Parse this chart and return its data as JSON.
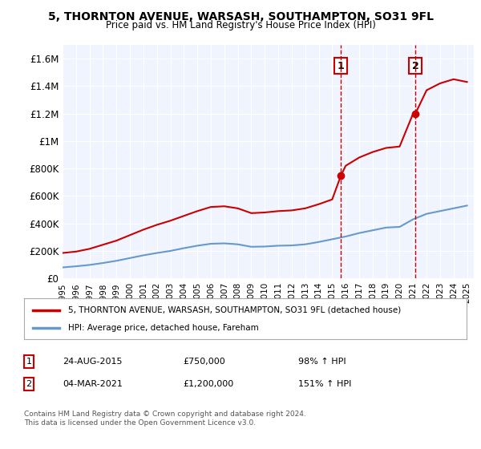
{
  "title": "5, THORNTON AVENUE, WARSASH, SOUTHAMPTON, SO31 9FL",
  "subtitle": "Price paid vs. HM Land Registry's House Price Index (HPI)",
  "background_color": "#ffffff",
  "plot_bg_color": "#f0f4ff",
  "ylim": [
    0,
    1700000
  ],
  "yticks": [
    0,
    200000,
    400000,
    600000,
    800000,
    1000000,
    1200000,
    1400000,
    1600000
  ],
  "ytick_labels": [
    "£0",
    "£200K",
    "£400K",
    "£600K",
    "£800K",
    "£1M",
    "£1.2M",
    "£1.4M",
    "£1.6M"
  ],
  "xlim_start": 1995,
  "xlim_end": 2025.5,
  "xticks": [
    1995,
    1996,
    1997,
    1998,
    1999,
    2000,
    2001,
    2002,
    2003,
    2004,
    2005,
    2006,
    2007,
    2008,
    2009,
    2010,
    2011,
    2012,
    2013,
    2014,
    2015,
    2016,
    2017,
    2018,
    2019,
    2020,
    2021,
    2022,
    2023,
    2024,
    2025
  ],
  "sale1_x": 2015.65,
  "sale1_y": 750000,
  "sale1_label": "1",
  "sale2_x": 2021.17,
  "sale2_y": 1200000,
  "sale2_label": "2",
  "sale_color": "#cc0000",
  "hpi_color": "#6699cc",
  "legend_items": [
    {
      "label": "5, THORNTON AVENUE, WARSASH, SOUTHAMPTON, SO31 9FL (detached house)",
      "color": "#cc0000"
    },
    {
      "label": "HPI: Average price, detached house, Fareham",
      "color": "#6699cc"
    }
  ],
  "table_rows": [
    {
      "num": "1",
      "date": "24-AUG-2015",
      "price": "£750,000",
      "hpi": "98% ↑ HPI"
    },
    {
      "num": "2",
      "date": "04-MAR-2021",
      "price": "£1,200,000",
      "hpi": "151% ↑ HPI"
    }
  ],
  "footer": "Contains HM Land Registry data © Crown copyright and database right 2024.\nThis data is licensed under the Open Government Licence v3.0.",
  "hpi_x": [
    1995,
    1996,
    1997,
    1998,
    1999,
    2000,
    2001,
    2002,
    2003,
    2004,
    2005,
    2006,
    2007,
    2008,
    2009,
    2010,
    2011,
    2012,
    2013,
    2014,
    2015,
    2016,
    2017,
    2018,
    2019,
    2020,
    2021,
    2022,
    2023,
    2024,
    2025
  ],
  "hpi_y": [
    80000,
    88000,
    98000,
    112000,
    128000,
    148000,
    168000,
    185000,
    200000,
    220000,
    238000,
    252000,
    255000,
    248000,
    230000,
    232000,
    238000,
    240000,
    248000,
    265000,
    285000,
    305000,
    330000,
    350000,
    370000,
    375000,
    430000,
    470000,
    490000,
    510000,
    530000
  ],
  "red_x": [
    1995,
    1996,
    1997,
    1998,
    1999,
    2000,
    2001,
    2002,
    2003,
    2004,
    2005,
    2006,
    2007,
    2008,
    2009,
    2010,
    2011,
    2012,
    2013,
    2014,
    2015,
    2015.65,
    2016,
    2017,
    2018,
    2019,
    2020,
    2021,
    2021.17,
    2022,
    2023,
    2024,
    2025
  ],
  "red_y": [
    185000,
    195000,
    215000,
    245000,
    275000,
    315000,
    355000,
    390000,
    420000,
    455000,
    490000,
    520000,
    525000,
    510000,
    475000,
    480000,
    490000,
    495000,
    510000,
    540000,
    575000,
    750000,
    820000,
    880000,
    920000,
    950000,
    960000,
    1200000,
    1200000,
    1370000,
    1420000,
    1450000,
    1430000
  ]
}
